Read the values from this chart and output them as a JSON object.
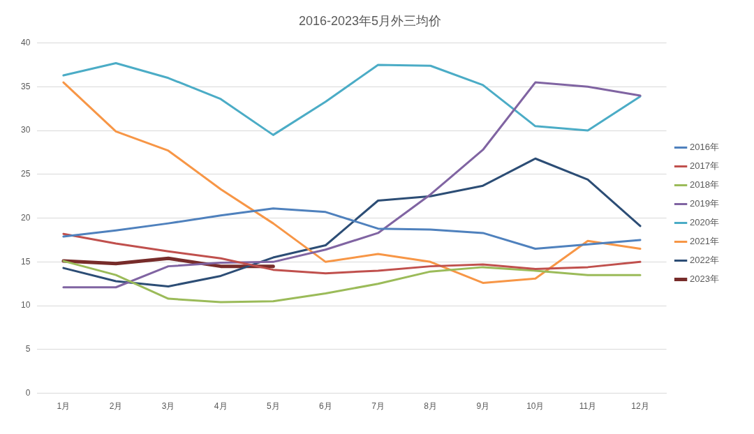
{
  "chart_data": {
    "type": "line",
    "title": "2016-2023年5月外三均价",
    "categories": [
      "1月",
      "2月",
      "3月",
      "4月",
      "5月",
      "6月",
      "7月",
      "8月",
      "9月",
      "10月",
      "11月",
      "12月"
    ],
    "series": [
      {
        "name": "2016年",
        "color": "#4f81bd",
        "values": [
          17.9,
          18.6,
          19.4,
          20.3,
          21.1,
          20.7,
          18.8,
          18.7,
          18.3,
          16.5,
          17.0,
          17.5
        ]
      },
      {
        "name": "2017年",
        "color": "#c0504d",
        "values": [
          18.2,
          17.1,
          16.2,
          15.4,
          14.1,
          13.7,
          14.0,
          14.5,
          14.7,
          14.2,
          14.4,
          15.0
        ]
      },
      {
        "name": "2018年",
        "color": "#9bbb59",
        "values": [
          15.1,
          13.5,
          10.8,
          10.4,
          10.5,
          11.4,
          12.5,
          13.9,
          14.4,
          14.0,
          13.5,
          13.5
        ]
      },
      {
        "name": "2019年",
        "color": "#8064a2",
        "values": [
          12.1,
          12.1,
          14.5,
          14.9,
          15.0,
          16.4,
          18.3,
          22.7,
          27.8,
          35.5,
          35.0,
          34.0
        ]
      },
      {
        "name": "2020年",
        "color": "#4bacc6",
        "values": [
          36.3,
          37.7,
          36.0,
          33.6,
          29.5,
          33.3,
          37.5,
          37.4,
          35.2,
          30.5,
          30.0,
          33.9
        ]
      },
      {
        "name": "2021年",
        "color": "#f79646",
        "values": [
          35.5,
          29.9,
          27.7,
          23.3,
          19.4,
          15.0,
          15.9,
          15.0,
          12.6,
          13.1,
          17.4,
          16.5
        ]
      },
      {
        "name": "2022年",
        "color": "#2c4d75",
        "values": [
          14.3,
          12.8,
          12.2,
          13.4,
          15.5,
          16.9,
          22.0,
          22.5,
          23.7,
          26.8,
          24.4,
          19.1
        ]
      },
      {
        "name": "2023年",
        "color": "#772c2a",
        "values": [
          15.1,
          14.8,
          15.4,
          14.5,
          14.5,
          null,
          null,
          null,
          null,
          null,
          null,
          null
        ]
      }
    ],
    "ylim": [
      0,
      40
    ],
    "yticks": [
      0,
      5,
      10,
      15,
      20,
      25,
      30,
      35,
      40
    ],
    "grid": "y",
    "legend": "right",
    "marker": "none",
    "line_style": "solid"
  }
}
